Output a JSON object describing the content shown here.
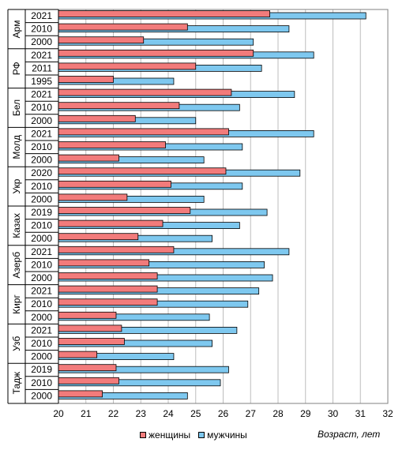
{
  "chart_data": {
    "type": "bar",
    "orientation": "horizontal",
    "xlabel": "Возраст, лет",
    "xlim": [
      20,
      32
    ],
    "xticks": [
      20,
      21,
      22,
      23,
      24,
      25,
      26,
      27,
      28,
      29,
      30,
      31,
      32
    ],
    "grid": true,
    "legend_placement": "bottom",
    "colors": {
      "женщины": "#f27b7b",
      "мужчины": "#7ec8ef"
    },
    "series": [
      {
        "name": "женщины"
      },
      {
        "name": "мужчины"
      }
    ],
    "groups": [
      {
        "country": "Арм",
        "rows": [
          {
            "year": "2021",
            "женщины": 27.7,
            "мужчины": 31.2
          },
          {
            "year": "2010",
            "женщины": 24.7,
            "мужчины": 28.4
          },
          {
            "year": "2000",
            "женщины": 23.1,
            "мужчины": 27.1
          }
        ]
      },
      {
        "country": "РФ",
        "rows": [
          {
            "year": "2021",
            "женщины": 27.1,
            "мужчины": 29.3
          },
          {
            "year": "2011",
            "женщины": 25.0,
            "мужчины": 27.4
          },
          {
            "year": "1995",
            "женщины": 22.0,
            "мужчины": 24.2
          }
        ]
      },
      {
        "country": "Бел",
        "rows": [
          {
            "year": "2021",
            "женщины": 26.3,
            "мужчины": 28.6
          },
          {
            "year": "2010",
            "женщины": 24.4,
            "мужчины": 26.6
          },
          {
            "year": "2000",
            "женщины": 22.8,
            "мужчины": 25.0
          }
        ]
      },
      {
        "country": "Молд",
        "rows": [
          {
            "year": "2021",
            "женщины": 26.2,
            "мужчины": 29.3
          },
          {
            "year": "2010",
            "женщины": 23.9,
            "мужчины": 26.7
          },
          {
            "year": "2000",
            "женщины": 22.2,
            "мужчины": 25.3
          }
        ]
      },
      {
        "country": "Укр",
        "rows": [
          {
            "year": "2020",
            "женщины": 26.1,
            "мужчины": 28.8
          },
          {
            "year": "2010",
            "женщины": 24.1,
            "мужчины": 26.7
          },
          {
            "year": "2000",
            "женщины": 22.5,
            "мужчины": 25.3
          }
        ]
      },
      {
        "country": "Казах",
        "rows": [
          {
            "year": "2019",
            "женщины": 24.8,
            "мужчины": 27.6
          },
          {
            "year": "2010",
            "женщины": 23.8,
            "мужчины": 26.6
          },
          {
            "year": "2000",
            "женщины": 22.9,
            "мужчины": 25.6
          }
        ]
      },
      {
        "country": "Азерб",
        "rows": [
          {
            "year": "2021",
            "женщины": 24.2,
            "мужчины": 28.4
          },
          {
            "year": "2010",
            "женщины": 23.3,
            "мужчины": 27.5
          },
          {
            "year": "2000",
            "женщины": 23.6,
            "мужчины": 27.8
          }
        ]
      },
      {
        "country": "Кирг",
        "rows": [
          {
            "year": "2021",
            "женщины": 23.6,
            "мужчины": 27.3
          },
          {
            "year": "2010",
            "женщины": 23.6,
            "мужчины": 26.9
          },
          {
            "year": "2000",
            "женщины": 22.1,
            "мужчины": 25.5
          }
        ]
      },
      {
        "country": "Узб",
        "rows": [
          {
            "year": "2021",
            "женщины": 22.3,
            "мужчины": 26.5
          },
          {
            "year": "2010",
            "женщины": 22.4,
            "мужчины": 25.6
          },
          {
            "year": "2000",
            "женщины": 21.4,
            "мужчины": 24.2
          }
        ]
      },
      {
        "country": "Тадж",
        "rows": [
          {
            "year": "2019",
            "женщины": 22.1,
            "мужчины": 26.2
          },
          {
            "year": "2010",
            "женщины": 22.2,
            "мужчины": 25.9
          },
          {
            "year": "2000",
            "женщины": 21.6,
            "мужчины": 24.7
          }
        ]
      }
    ]
  }
}
